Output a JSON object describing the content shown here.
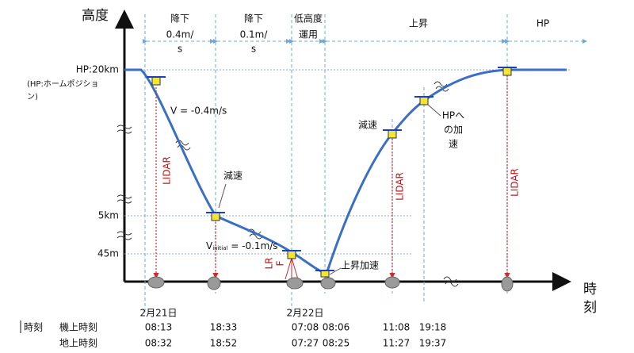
{
  "y_label": "高度",
  "x_label": "時刻",
  "y_levels": [
    "HP:20km",
    "5km",
    "45m"
  ],
  "hp_note": [
    "(HP:ホームポジショ",
    "ン)"
  ],
  "phases": [
    [
      "降下",
      "0.4m/",
      "s"
    ],
    [
      "降下",
      "0.1m/",
      "s"
    ],
    [
      "低高度",
      "運用"
    ],
    [
      "上昇"
    ],
    [
      "HP"
    ]
  ],
  "annotations": {
    "v1": "V = -0.4m/s",
    "decel1": "減速",
    "v2_main": "V",
    "v2_sub": "initial",
    "v2_rest": " = -0.1m/s",
    "lrf": [
      "LR",
      "F"
    ],
    "ascent_accel": "上昇加速",
    "decel2": "減速",
    "hp_accel": [
      "HPへ",
      "の加",
      "速"
    ]
  },
  "lidar": [
    "LIDAR",
    "LIDAR",
    "LIDAR"
  ],
  "dates": [
    "2月21日",
    "2月22日"
  ],
  "table": {
    "header": "時刻",
    "rows": [
      {
        "label": "機上時刻",
        "times": [
          "08:13",
          "18:33",
          "07:08",
          "08:06",
          "11:08",
          "19:18"
        ]
      },
      {
        "label": "地上時刻",
        "times": [
          "08:32",
          "18:52",
          "07:27",
          "08:25",
          "11:27",
          "19:37"
        ]
      }
    ]
  }
}
